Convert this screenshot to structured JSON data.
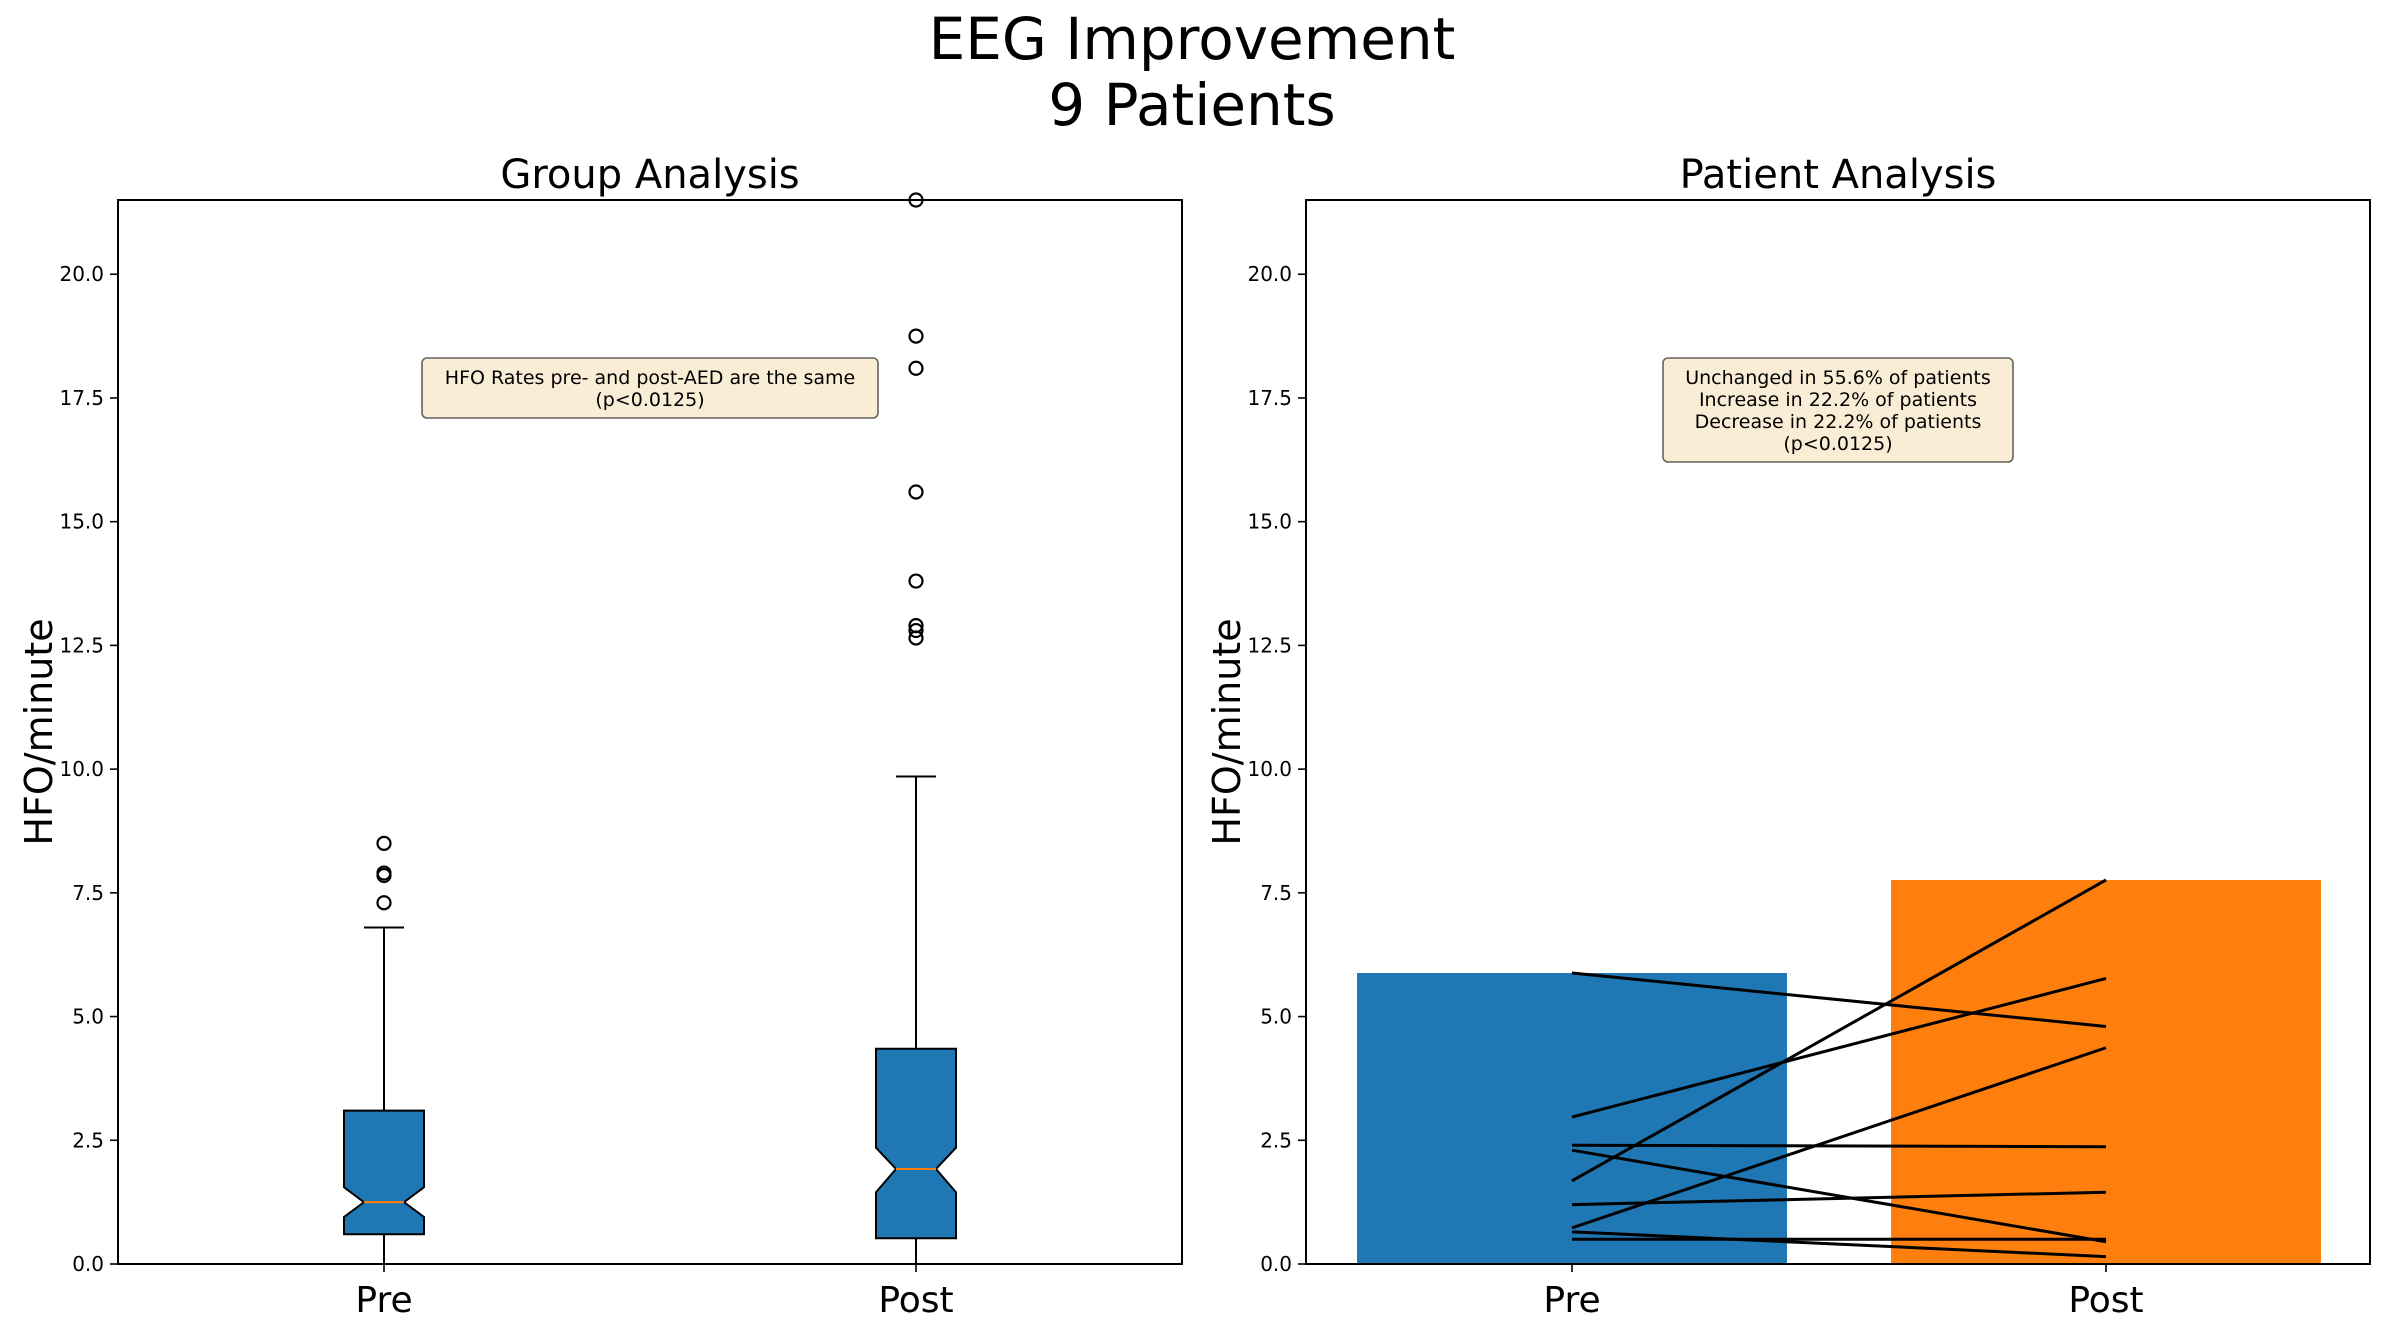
{
  "figure": {
    "title_line1": "EEG Improvement",
    "title_line2": "9 Patients"
  },
  "chart_data": [
    {
      "type": "box",
      "title": "Group Analysis",
      "xlabel": "",
      "ylabel": "HFO/minute",
      "ylim": [
        0,
        21.5
      ],
      "yticks": [
        0.0,
        2.5,
        5.0,
        7.5,
        10.0,
        12.5,
        15.0,
        17.5,
        20.0
      ],
      "ytick_labels": [
        "0.0",
        "2.5",
        "5.0",
        "7.5",
        "10.0",
        "12.5",
        "15.0",
        "17.5",
        "20.0"
      ],
      "categories": [
        "Pre",
        "Post"
      ],
      "notched": true,
      "box_color": "#1f77b4",
      "median_color": "#ff7f0e",
      "boxes": [
        {
          "category": "Pre",
          "whisker_low": 0.0,
          "q1": 0.6,
          "notch_low": 0.95,
          "median": 1.25,
          "notch_high": 1.55,
          "q3": 3.1,
          "whisker_high": 6.8,
          "outliers": [
            7.3,
            7.85,
            7.9,
            8.5
          ]
        },
        {
          "category": "Post",
          "whisker_low": 0.0,
          "q1": 0.52,
          "notch_low": 1.45,
          "median": 1.92,
          "notch_high": 2.35,
          "q3": 4.35,
          "whisker_high": 9.85,
          "outliers": [
            12.65,
            12.8,
            12.9,
            13.8,
            15.6,
            18.1,
            18.75,
            21.5
          ]
        }
      ],
      "annotation": {
        "lines": [
          "HFO Rates pre- and post-AED are the same",
          "(p<0.0125)"
        ],
        "x": 0.5,
        "y": 18.0
      }
    },
    {
      "type": "bar",
      "title": "Patient Analysis",
      "xlabel": "",
      "ylabel": "HFO/minute",
      "ylim": [
        0,
        21.5
      ],
      "yticks": [
        0.0,
        2.5,
        5.0,
        7.5,
        10.0,
        12.5,
        15.0,
        17.5,
        20.0
      ],
      "ytick_labels": [
        "0.0",
        "2.5",
        "5.0",
        "7.5",
        "10.0",
        "12.5",
        "15.0",
        "17.5",
        "20.0"
      ],
      "categories": [
        "Pre",
        "Post"
      ],
      "values": [
        5.88,
        7.76
      ],
      "colors": [
        "#1f77b4",
        "#ff7f0e"
      ],
      "patients": [
        {
          "pre": 5.88,
          "post": 4.8
        },
        {
          "pre": 2.97,
          "post": 5.77
        },
        {
          "pre": 1.68,
          "post": 7.76
        },
        {
          "pre": 0.73,
          "post": 4.37
        },
        {
          "pre": 2.4,
          "post": 2.37
        },
        {
          "pre": 2.3,
          "post": 0.45
        },
        {
          "pre": 1.2,
          "post": 1.45
        },
        {
          "pre": 0.65,
          "post": 0.15
        },
        {
          "pre": 0.5,
          "post": 0.5
        }
      ],
      "annotation": {
        "lines": [
          "Unchanged in 55.6% of patients",
          "Increase in 22.2% of patients",
          "Decrease in 22.2% of patients",
          "(p<0.0125)"
        ],
        "x": 0.5,
        "y": 17.1
      }
    }
  ]
}
